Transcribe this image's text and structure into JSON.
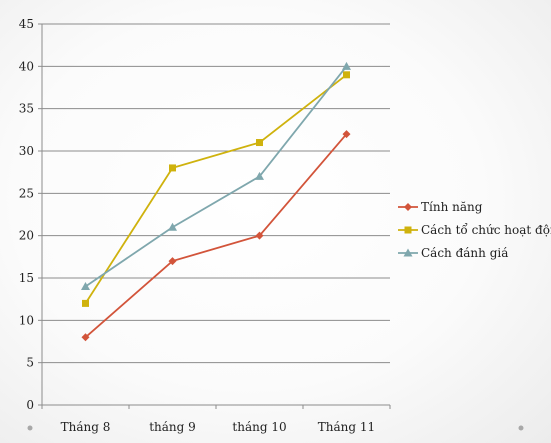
{
  "chart_data": {
    "type": "line",
    "categories": [
      "Tháng 8",
      "tháng 9",
      "tháng 10",
      "Tháng 11"
    ],
    "series": [
      {
        "name": "Tính năng",
        "values": [
          8,
          17,
          20,
          32
        ],
        "color": "#d2543a",
        "marker": "diamond"
      },
      {
        "name": "Cách tổ chức hoạt động",
        "values": [
          12,
          28,
          31,
          39
        ],
        "color": "#cfb20d",
        "marker": "square"
      },
      {
        "name": "Cách đánh giá",
        "values": [
          14,
          21,
          27,
          40
        ],
        "color": "#7fa7ad",
        "marker": "triangle"
      }
    ],
    "ylim": [
      0,
      45
    ],
    "yticks": [
      0,
      5,
      10,
      15,
      20,
      25,
      30,
      35,
      40,
      45
    ],
    "grid": true,
    "legend": "right"
  }
}
